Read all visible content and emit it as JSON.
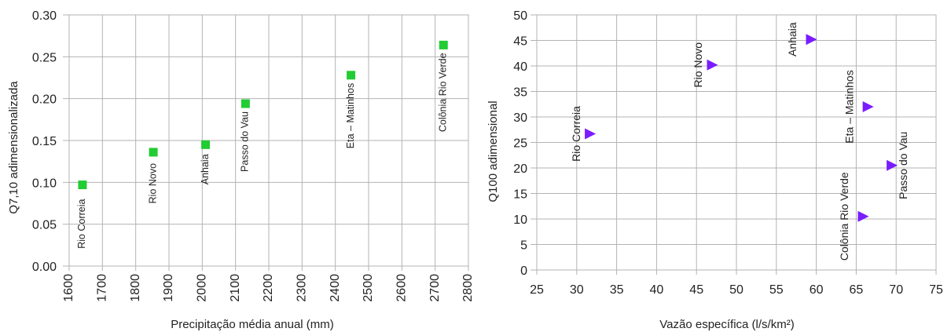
{
  "chart_data": [
    {
      "type": "scatter",
      "title": "",
      "xlabel": "Precipitação média anual (mm)",
      "ylabel": "Q7,10 adimensionalizada",
      "xlim": [
        1600,
        2800
      ],
      "ylim": [
        0.0,
        0.3
      ],
      "x_ticks": [
        "1600",
        "1700",
        "1800",
        "1900",
        "2000",
        "2100",
        "2200",
        "2300",
        "2400",
        "2500",
        "2600",
        "2700",
        "2800"
      ],
      "y_ticks": [
        "0.00",
        "0.05",
        "0.10",
        "0.15",
        "0.20",
        "0.25",
        "0.30"
      ],
      "grid": true,
      "marker": "square",
      "marker_color": "#22cc33",
      "points": [
        {
          "label": "Rio Correia",
          "x": 1640,
          "y": 0.097
        },
        {
          "label": "Rio Novo",
          "x": 1853,
          "y": 0.136
        },
        {
          "label": "Anhaia",
          "x": 2010,
          "y": 0.145
        },
        {
          "label": "Passo do Vau",
          "x": 2130,
          "y": 0.194
        },
        {
          "label": "Eta – Matinhos",
          "x": 2447,
          "y": 0.228
        },
        {
          "label": "Colônia Rio Verde",
          "x": 2725,
          "y": 0.264
        }
      ]
    },
    {
      "type": "scatter",
      "title": "",
      "xlabel": "Vazão específica (l/s/km²)",
      "ylabel": "Q100 adimensional",
      "xlim": [
        25,
        75
      ],
      "ylim": [
        0,
        50
      ],
      "x_ticks": [
        "25",
        "30",
        "35",
        "40",
        "45",
        "50",
        "55",
        "60",
        "65",
        "70",
        "75"
      ],
      "y_ticks": [
        "0",
        "5",
        "10",
        "15",
        "20",
        "25",
        "30",
        "35",
        "40",
        "45",
        "50"
      ],
      "grid": true,
      "marker": "triangle-right",
      "marker_color": "#7a1cff",
      "points": [
        {
          "label": "Rio Correia",
          "x": 31.6,
          "y": 26.7
        },
        {
          "label": "Rio Novo",
          "x": 46.9,
          "y": 40.2
        },
        {
          "label": "Anhaia",
          "x": 59.3,
          "y": 45.2
        },
        {
          "label": "Eta – Matinhos",
          "x": 66.4,
          "y": 32.0
        },
        {
          "label": "Passo do Vau",
          "x": 69.4,
          "y": 20.5
        },
        {
          "label": "Colônia Rio Verde",
          "x": 65.8,
          "y": 10.5
        }
      ]
    }
  ]
}
